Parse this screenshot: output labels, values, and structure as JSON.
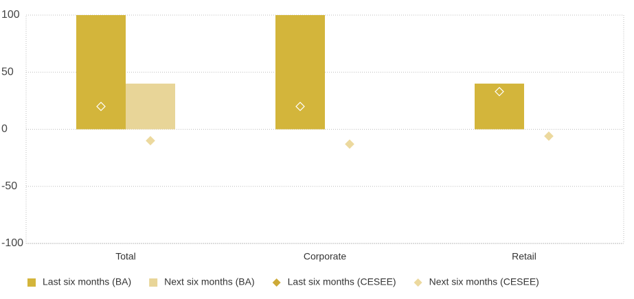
{
  "chart_data": {
    "type": "bar",
    "categories": [
      "Total",
      "Corporate",
      "Retail"
    ],
    "series": [
      {
        "name": "Last six months (BA)",
        "type": "bar",
        "color": "#d3b53b",
        "values": [
          100,
          100,
          40
        ]
      },
      {
        "name": "Next six months (BA)",
        "type": "bar",
        "color": "#e8d598",
        "values": [
          40,
          0,
          0
        ]
      },
      {
        "name": "Last six months (CESEE)",
        "type": "diamond",
        "color": "#cdaa38",
        "values": [
          20,
          20,
          33
        ]
      },
      {
        "name": "Next six months (CESEE)",
        "type": "diamond",
        "color": "#ecd99e",
        "values": [
          -10,
          -13,
          -6
        ]
      }
    ],
    "ylim": [
      -100,
      100
    ],
    "yticks": [
      -100,
      -50,
      0,
      50,
      100
    ],
    "grid": true
  }
}
